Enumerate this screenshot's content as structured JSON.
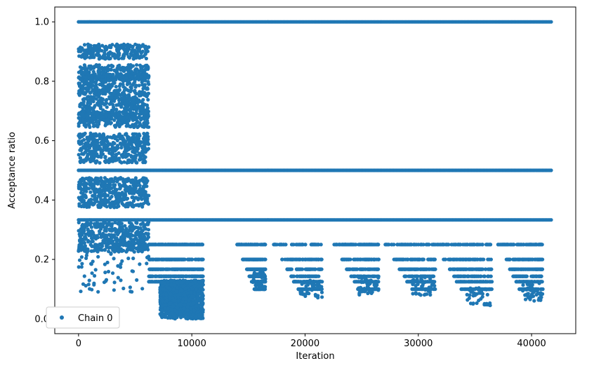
{
  "chart_data": {
    "type": "scatter",
    "xlabel": "Iteration",
    "ylabel": "Acceptance ratio",
    "xlim": [
      -2100,
      43900
    ],
    "ylim": [
      -0.05,
      1.05
    ],
    "x_ticks": [
      0,
      10000,
      20000,
      30000,
      40000
    ],
    "x_tick_labels": [
      "0",
      "10000",
      "20000",
      "30000",
      "40000"
    ],
    "y_ticks": [
      0.0,
      0.2,
      0.4,
      0.6,
      0.8,
      1.0
    ],
    "y_tick_labels": [
      "0.0",
      "0.2",
      "0.4",
      "0.6",
      "0.8",
      "1.0"
    ],
    "grid": false,
    "legend_position": "lower-left",
    "marker_color": "#1f77b4",
    "series": [
      {
        "name": "Chain 0",
        "x_range": [
          0,
          41800
        ],
        "constant_levels": [
          {
            "value": 1.0,
            "x_range": [
              0,
              41800
            ]
          },
          {
            "value": 0.5,
            "x_range": [
              0,
              41800
            ]
          },
          {
            "value": 0.333,
            "x_range": [
              0,
              41800
            ]
          }
        ],
        "phases": [
          {
            "x_range": [
              0,
              6200
            ],
            "y_range": [
              0.09,
              0.94
            ],
            "description_levels": [
              0.25,
              0.3,
              0.4,
              0.45,
              0.55,
              0.6,
              0.67,
              0.7,
              0.75,
              0.8,
              0.83,
              0.9
            ]
          },
          {
            "x_range": [
              6200,
              11000
            ],
            "y_range": [
              0.0,
              0.25
            ],
            "description_levels": [
              0.0,
              0.05,
              0.1,
              0.125,
              0.143,
              0.167,
              0.2,
              0.25
            ]
          },
          {
            "x_range": [
              14000,
              16500
            ],
            "y_range": [
              0.1,
              0.25
            ]
          },
          {
            "x_range": [
              17200,
              21500
            ],
            "y_range": [
              0.07,
              0.25
            ]
          },
          {
            "x_range": [
              22500,
              26500
            ],
            "y_range": [
              0.08,
              0.25
            ]
          },
          {
            "x_range": [
              27000,
              31500
            ],
            "y_range": [
              0.08,
              0.25
            ]
          },
          {
            "x_range": [
              31500,
              36500
            ],
            "y_range": [
              0.045,
              0.25
            ]
          },
          {
            "x_range": [
              37000,
              41000
            ],
            "y_range": [
              0.06,
              0.25
            ]
          }
        ]
      }
    ]
  }
}
